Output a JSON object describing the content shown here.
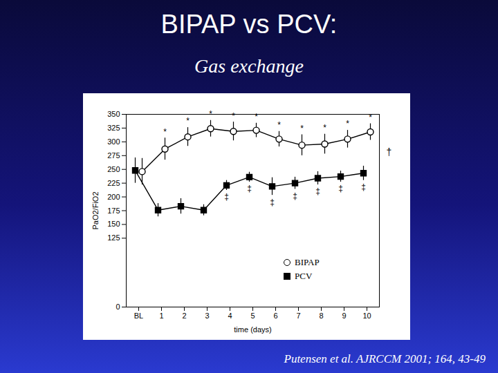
{
  "chart_data": {
    "type": "line",
    "title": "BIPAP vs PCV:",
    "subtitle": "Gas exchange",
    "caption": "Putensen et al. AJRCCM 2001; 164, 43-49",
    "x_label": "time (days)",
    "y_label": "PaO2/FiO2",
    "categories": [
      "BL",
      "1",
      "2",
      "3",
      "4",
      "5",
      "6",
      "7",
      "8",
      "9",
      "10"
    ],
    "ylim": [
      0,
      350
    ],
    "yticks": [
      0,
      125,
      150,
      175,
      200,
      225,
      250,
      275,
      300,
      325,
      350
    ],
    "grid": false,
    "legend": "bottom",
    "series": [
      {
        "name": "BIPAP",
        "color": "#000000",
        "marker": "circle-open",
        "values": [
          246,
          287,
          309,
          324,
          319,
          321,
          305,
          294,
          296,
          305,
          318
        ],
        "errors": [
          24,
          20,
          17,
          15,
          17,
          13,
          14,
          19,
          18,
          16,
          15
        ],
        "annotations": [
          null,
          "*",
          "*",
          "*",
          "*",
          "*",
          "*",
          "*",
          "*",
          "*",
          "*"
        ]
      },
      {
        "name": "PCV",
        "color": "#000000",
        "marker": "square",
        "values": [
          248,
          176,
          183,
          176,
          221,
          236,
          219,
          225,
          234,
          237,
          243
        ],
        "errors": [
          23,
          12,
          14,
          10,
          9,
          9,
          16,
          11,
          12,
          10,
          13
        ],
        "annotations": [
          null,
          null,
          null,
          null,
          "‡",
          "‡",
          "‡",
          "‡",
          "‡",
          "‡",
          "‡"
        ]
      }
    ],
    "annotations": [
      {
        "text": "†"
      }
    ]
  }
}
